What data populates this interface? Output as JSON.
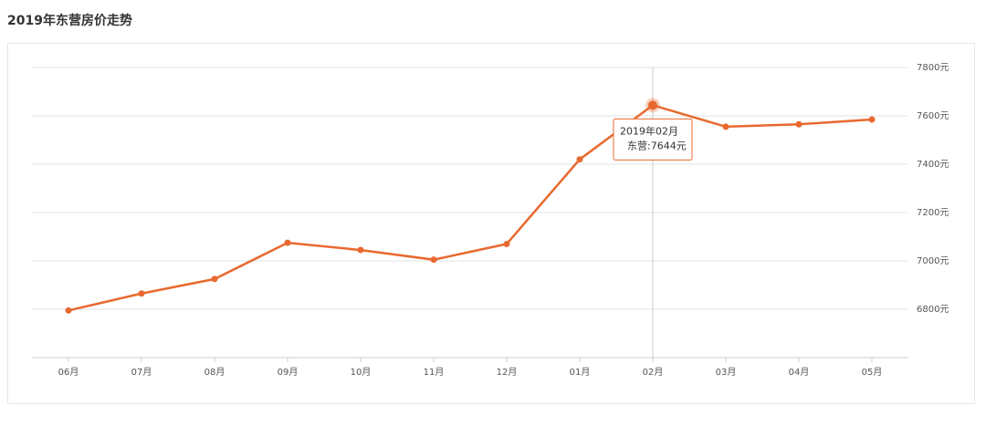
{
  "chart_data": {
    "type": "line",
    "title": "2019年东营房价走势",
    "categories": [
      "06月",
      "07月",
      "08月",
      "09月",
      "10月",
      "11月",
      "12月",
      "01月",
      "02月",
      "03月",
      "04月",
      "05月"
    ],
    "series": [
      {
        "name": "东营",
        "color": "#e8692f",
        "values": [
          6795,
          6865,
          6925,
          7075,
          7045,
          7005,
          7070,
          7420,
          7644,
          7555,
          7565,
          7585
        ]
      }
    ],
    "ylim": [
      6600,
      7800
    ],
    "yticks": [
      {
        "value": 6800,
        "label": "6800元"
      },
      {
        "value": 7000,
        "label": "7000元"
      },
      {
        "value": 7200,
        "label": "7200元"
      },
      {
        "value": 7400,
        "label": "7400元"
      },
      {
        "value": 7600,
        "label": "7600元"
      },
      {
        "value": 7800,
        "label": "7800元"
      }
    ],
    "grid": true,
    "tooltip": {
      "title": "2019年02月",
      "text": "东营:7644元"
    }
  }
}
